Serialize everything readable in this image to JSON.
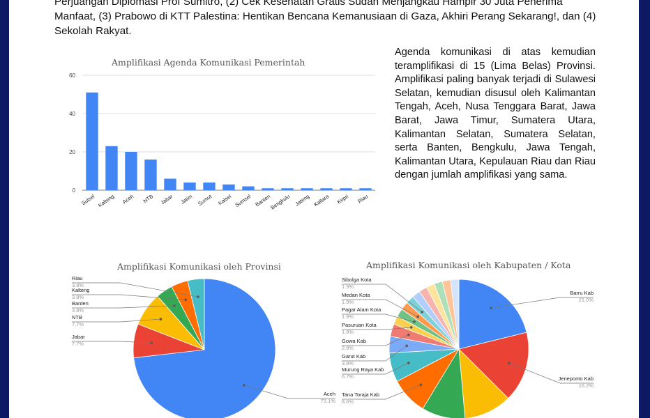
{
  "intro_text": "Perjuangan Diplomasi Prof Sumitro, (2) Cek Kesehatan Gratis Sudah Menjangkau Hampir 30 Juta Penerima Manfaat, (3) Prabowo di KTT Palestina: Hentikan Bencana Kemanusiaan di Gaza, Akhiri Perang Sekarang!, dan (4) Sekolah Rakyat.",
  "side_text": "Agenda komunikasi di atas kemudian teramplifikasi di 15 (Lima Belas) Provinsi. Amplifikasi paling banyak terjadi di Sulawesi Selatan, kemudian disusul oleh Kalimantan Tengah, Aceh, Nusa Tenggara Barat, Jawa Barat, Jawa Timur, Sumatera Utara, Kalimantan Selatan, Sumatera Selatan, serta Banten, Bengkulu, Jawa Tengah, Kalimantan Utara, Kepulauan Riau dan Riau dengan jumlah amplifikasi yang sama.",
  "colors": {
    "blue": "#4285f4",
    "red": "#ea4335",
    "yellow": "#fbbc04",
    "green": "#34a853",
    "orange": "#ff6d01",
    "teal": "#46bdc6",
    "border": "#0d1a63"
  },
  "chart_data": [
    {
      "type": "bar",
      "title": "Amplifikasi Agenda Komunikasi Pemerintah",
      "categories": [
        "Sulsel",
        "Kalteng",
        "Aceh",
        "NTB",
        "Jabar",
        "Jatim",
        "Sumut",
        "Kalsel",
        "Sumsel",
        "Banten",
        "Bengkulu",
        "Jateng",
        "Kaltara",
        "Kepri",
        "Riau"
      ],
      "values": [
        51,
        23,
        20,
        16,
        6,
        4,
        4,
        3,
        2,
        1,
        1,
        1,
        1,
        1,
        1
      ],
      "ylim": [
        0,
        60
      ],
      "yticks": [
        "0",
        "20",
        "40",
        "60"
      ],
      "grid": true,
      "color": "#4285f4"
    },
    {
      "type": "pie",
      "title": "Amplifikasi Komunikasi oleh Provinsi",
      "slices": [
        {
          "label": "Aceh",
          "value": 73.1,
          "pct": "73.1%",
          "color": "#4285f4"
        },
        {
          "label": "Jabar",
          "value": 7.7,
          "pct": "7.7%",
          "color": "#ea4335"
        },
        {
          "label": "NTB",
          "value": 7.7,
          "pct": "7.7%",
          "color": "#fbbc04"
        },
        {
          "label": "Banten",
          "value": 3.8,
          "pct": "3.8%",
          "color": "#34a853"
        },
        {
          "label": "Kalteng",
          "value": 3.8,
          "pct": "3.8%",
          "color": "#ff6d01"
        },
        {
          "label": "Riau",
          "value": 3.8,
          "pct": "3.8%",
          "color": "#46bdc6"
        }
      ]
    },
    {
      "type": "pie",
      "title": "Amplifikasi Komunikasi oleh Kabupaten / Kota",
      "slices": [
        {
          "label": "Barru Kab",
          "value": 21.0,
          "pct": "21.0%",
          "color": "#4285f4"
        },
        {
          "label": "Jeneponto Kab",
          "value": 16.2,
          "pct": "16.2%",
          "color": "#ea4335"
        },
        {
          "label": "",
          "value": 11.0,
          "pct": "",
          "color": "#fbbc04"
        },
        {
          "label": "",
          "value": 10.0,
          "pct": "",
          "color": "#34a853"
        },
        {
          "label": "Tana Toraja Kab",
          "value": 8.6,
          "pct": "8.6%",
          "color": "#ff6d01"
        },
        {
          "label": "Murung Raya Kab",
          "value": 6.7,
          "pct": "6.7%",
          "color": "#46bdc6"
        },
        {
          "label": "Garut Kab",
          "value": 3.8,
          "pct": "3.8%",
          "color": "#7baaf7"
        },
        {
          "label": "Gowa Kab",
          "value": 2.9,
          "pct": "2.9%",
          "color": "#f07b72"
        },
        {
          "label": "Pasuruan Kota",
          "value": 1.9,
          "pct": "1.9%",
          "color": "#fcd04f"
        },
        {
          "label": "Pagar Alam Kota",
          "value": 1.9,
          "pct": "1.9%",
          "color": "#71c287"
        },
        {
          "label": "Medan Kota",
          "value": 1.9,
          "pct": "1.9%",
          "color": "#ff994d"
        },
        {
          "label": "Sibolga Kota",
          "value": 1.9,
          "pct": "1.9%",
          "color": "#7ed1d7"
        },
        {
          "label": "",
          "value": 1.9,
          "pct": "",
          "color": "#b3cefb"
        },
        {
          "label": "",
          "value": 1.9,
          "pct": "",
          "color": "#f7b4ae"
        },
        {
          "label": "",
          "value": 1.9,
          "pct": "",
          "color": "#fde49b"
        },
        {
          "label": "",
          "value": 1.9,
          "pct": "",
          "color": "#ade0b9"
        },
        {
          "label": "",
          "value": 1.9,
          "pct": "",
          "color": "#ffc599"
        },
        {
          "label": "",
          "value": 1.9,
          "pct": "",
          "color": "#d5e4fd"
        }
      ]
    }
  ]
}
